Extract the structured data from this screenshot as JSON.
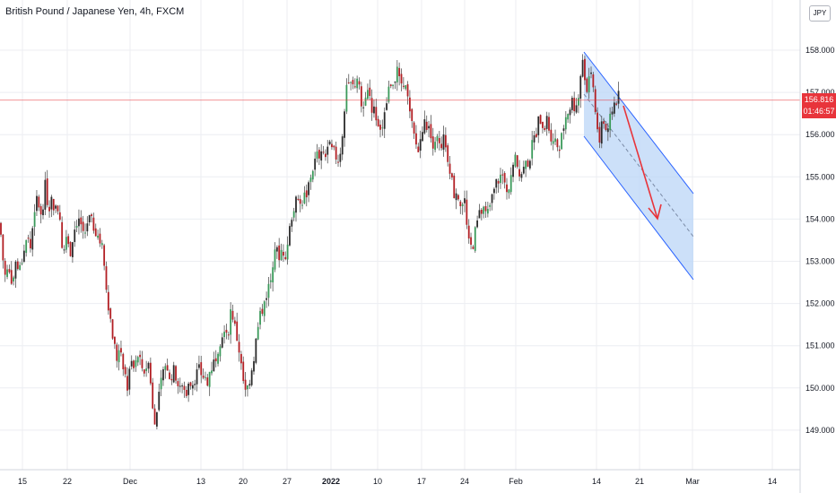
{
  "header": {
    "title": "British Pound / Japanese Yen, 4h, FXCM",
    "currency": "JPY"
  },
  "price_tag": {
    "price": "156.816",
    "countdown": "01:46:57"
  },
  "colors": {
    "up": "#26a69a",
    "down": "#ef5350",
    "candle_dark": "#2b2b2b",
    "candle_up": "#3a9a5a",
    "candle_down": "#b21f24",
    "channel_fill": "#bbd5f7",
    "channel_line": "#2962ff",
    "arrow": "#e8343b",
    "grid": "#eceef2",
    "price_line": "#e8343b"
  },
  "chart_data": {
    "type": "candlestick",
    "title": "British Pound / Japanese Yen, 4h, FXCM",
    "ylim": [
      148.2,
      159.1
    ],
    "y_ticks": [
      149,
      150,
      151,
      152,
      153,
      154,
      155,
      156,
      157,
      158
    ],
    "y_tick_labels": [
      "149.000",
      "150.000",
      "151.000",
      "152.000",
      "153.000",
      "154.000",
      "155.000",
      "156.000",
      "157.000",
      "158.000"
    ],
    "x_tick_labels": [
      "15",
      "22",
      "Dec",
      "13",
      "20",
      "27",
      "2022",
      "10",
      "17",
      "24",
      "Feb",
      "14",
      "21",
      "Mar",
      "14"
    ],
    "bold_x_ticks": [
      "2022"
    ],
    "last_price": 156.816,
    "path": [
      [
        0,
        153.9
      ],
      [
        3,
        153.1
      ],
      [
        6,
        152.6
      ],
      [
        10,
        152.9
      ],
      [
        14,
        152.5
      ],
      [
        18,
        153.0
      ],
      [
        22,
        152.8
      ],
      [
        26,
        153.2
      ],
      [
        30,
        153.6
      ],
      [
        34,
        153.3
      ],
      [
        38,
        154.2
      ],
      [
        42,
        154.5
      ],
      [
        46,
        154.0
      ],
      [
        50,
        154.8
      ],
      [
        54,
        154.3
      ],
      [
        58,
        154.5
      ],
      [
        62,
        154.2
      ],
      [
        66,
        154.3
      ],
      [
        70,
        153.2
      ],
      [
        74,
        153.5
      ],
      [
        78,
        153.2
      ],
      [
        82,
        153.7
      ],
      [
        86,
        154.0
      ],
      [
        90,
        153.9
      ],
      [
        94,
        153.6
      ],
      [
        98,
        154.0
      ],
      [
        102,
        153.9
      ],
      [
        106,
        153.8
      ],
      [
        110,
        153.6
      ],
      [
        114,
        153.3
      ],
      [
        118,
        152.5
      ],
      [
        122,
        151.8
      ],
      [
        126,
        151.2
      ],
      [
        130,
        150.7
      ],
      [
        134,
        151.0
      ],
      [
        138,
        150.5
      ],
      [
        142,
        150.0
      ],
      [
        146,
        150.6
      ],
      [
        150,
        150.4
      ],
      [
        154,
        150.8
      ],
      [
        158,
        150.5
      ],
      [
        162,
        150.4
      ],
      [
        166,
        150.8
      ],
      [
        170,
        149.5
      ],
      [
        174,
        149.2
      ],
      [
        178,
        150.0
      ],
      [
        182,
        150.3
      ],
      [
        186,
        150.6
      ],
      [
        190,
        150.2
      ],
      [
        194,
        150.4
      ],
      [
        198,
        150.2
      ],
      [
        202,
        150.0
      ],
      [
        206,
        149.9
      ],
      [
        210,
        150.0
      ],
      [
        214,
        150.1
      ],
      [
        218,
        150.3
      ],
      [
        222,
        150.4
      ],
      [
        226,
        150.3
      ],
      [
        230,
        150.1
      ],
      [
        234,
        150.4
      ],
      [
        238,
        150.6
      ],
      [
        242,
        150.9
      ],
      [
        246,
        151.2
      ],
      [
        250,
        151.5
      ],
      [
        254,
        151.3
      ],
      [
        258,
        151.9
      ],
      [
        262,
        151.4
      ],
      [
        266,
        151.0
      ],
      [
        270,
        150.3
      ],
      [
        274,
        149.8
      ],
      [
        278,
        150.2
      ],
      [
        282,
        150.6
      ],
      [
        286,
        151.2
      ],
      [
        290,
        151.7
      ],
      [
        294,
        152.0
      ],
      [
        298,
        152.3
      ],
      [
        302,
        152.6
      ],
      [
        306,
        153.4
      ],
      [
        310,
        153.1
      ],
      [
        314,
        153.3
      ],
      [
        318,
        153.2
      ],
      [
        322,
        153.6
      ],
      [
        326,
        154.2
      ],
      [
        330,
        154.4
      ],
      [
        334,
        154.3
      ],
      [
        338,
        154.5
      ],
      [
        342,
        154.6
      ],
      [
        346,
        155.0
      ],
      [
        350,
        155.3
      ],
      [
        354,
        155.5
      ],
      [
        358,
        155.6
      ],
      [
        362,
        155.4
      ],
      [
        366,
        155.8
      ],
      [
        370,
        155.6
      ],
      [
        374,
        155.5
      ],
      [
        378,
        155.4
      ],
      [
        382,
        156.1
      ],
      [
        386,
        157.3
      ],
      [
        390,
        157.2
      ],
      [
        394,
        157.1
      ],
      [
        398,
        157.4
      ],
      [
        402,
        156.8
      ],
      [
        406,
        156.6
      ],
      [
        410,
        157.2
      ],
      [
        414,
        156.7
      ],
      [
        418,
        156.5
      ],
      [
        422,
        156.3
      ],
      [
        426,
        156.1
      ],
      [
        430,
        156.6
      ],
      [
        434,
        157.2
      ],
      [
        438,
        157.3
      ],
      [
        442,
        157.5
      ],
      [
        446,
        157.2
      ],
      [
        450,
        157.3
      ],
      [
        454,
        156.9
      ],
      [
        458,
        156.3
      ],
      [
        462,
        155.9
      ],
      [
        466,
        155.6
      ],
      [
        470,
        156.0
      ],
      [
        474,
        156.3
      ],
      [
        478,
        156.1
      ],
      [
        482,
        155.8
      ],
      [
        486,
        156.0
      ],
      [
        490,
        155.7
      ],
      [
        494,
        155.9
      ],
      [
        498,
        155.6
      ],
      [
        502,
        155.2
      ],
      [
        506,
        154.6
      ],
      [
        510,
        154.7
      ],
      [
        514,
        154.3
      ],
      [
        518,
        154.4
      ],
      [
        522,
        153.4
      ],
      [
        526,
        153.3
      ],
      [
        530,
        153.7
      ],
      [
        534,
        154.1
      ],
      [
        538,
        154.2
      ],
      [
        542,
        154.0
      ],
      [
        546,
        154.3
      ],
      [
        550,
        154.6
      ],
      [
        554,
        154.9
      ],
      [
        558,
        155.0
      ],
      [
        562,
        154.8
      ],
      [
        566,
        154.7
      ],
      [
        570,
        155.1
      ],
      [
        574,
        155.4
      ],
      [
        578,
        155.2
      ],
      [
        582,
        155.1
      ],
      [
        586,
        155.3
      ],
      [
        590,
        155.4
      ],
      [
        594,
        155.8
      ],
      [
        598,
        156.1
      ],
      [
        602,
        156.4
      ],
      [
        606,
        156.2
      ],
      [
        610,
        156.3
      ],
      [
        614,
        156.0
      ],
      [
        618,
        155.9
      ],
      [
        622,
        155.7
      ],
      [
        626,
        155.9
      ],
      [
        630,
        156.4
      ],
      [
        634,
        156.6
      ],
      [
        638,
        156.8
      ],
      [
        642,
        156.6
      ],
      [
        646,
        157.0
      ],
      [
        650,
        157.9
      ],
      [
        654,
        156.9
      ],
      [
        656,
        157.5
      ],
      [
        660,
        157.6
      ],
      [
        663,
        156.6
      ],
      [
        666,
        156.2
      ],
      [
        668,
        155.5
      ],
      [
        670,
        156.2
      ],
      [
        674,
        156.3
      ],
      [
        678,
        156.0
      ],
      [
        682,
        156.6
      ],
      [
        686,
        156.8
      ],
      [
        690,
        156.9
      ]
    ]
  }
}
